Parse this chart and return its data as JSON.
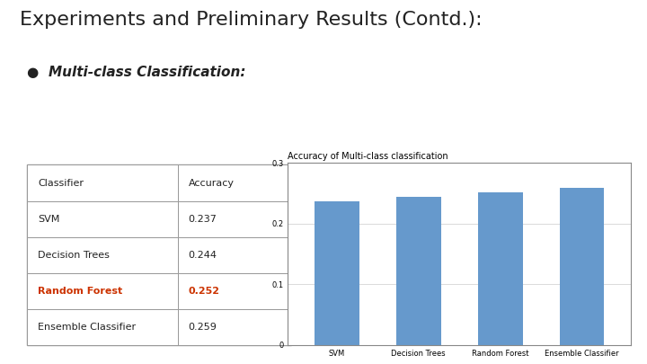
{
  "title": "Experiments and Preliminary Results (Contd.):",
  "bullet": "Multi-class Classification:",
  "table_headers": [
    "Classifier",
    "Accuracy"
  ],
  "table_rows": [
    [
      "SVM",
      "0.237",
      false
    ],
    [
      "Decision Trees",
      "0.244",
      false
    ],
    [
      "Random Forest",
      "0.252",
      true
    ],
    [
      "Ensemble Classifier",
      "0.259",
      false
    ]
  ],
  "bar_categories": [
    "SVM",
    "Decision Trees",
    "Random Forest",
    "Ensemble Classifier"
  ],
  "bar_values": [
    0.237,
    0.244,
    0.252,
    0.259
  ],
  "bar_color": "#6699CC",
  "chart_title": "Accuracy of Multi-class classification",
  "ylim": [
    0,
    0.3
  ],
  "yticks": [
    0,
    0.1,
    0.2,
    0.3
  ],
  "background_color": "#FFFFFF",
  "highlight_color": "#CC3300",
  "normal_color": "#222222",
  "table_border_color": "#999999",
  "chart_border_color": "#888888",
  "title_fontsize": 16,
  "bullet_fontsize": 11,
  "table_fontsize": 8,
  "chart_title_fontsize": 7,
  "chart_tick_fontsize": 6
}
